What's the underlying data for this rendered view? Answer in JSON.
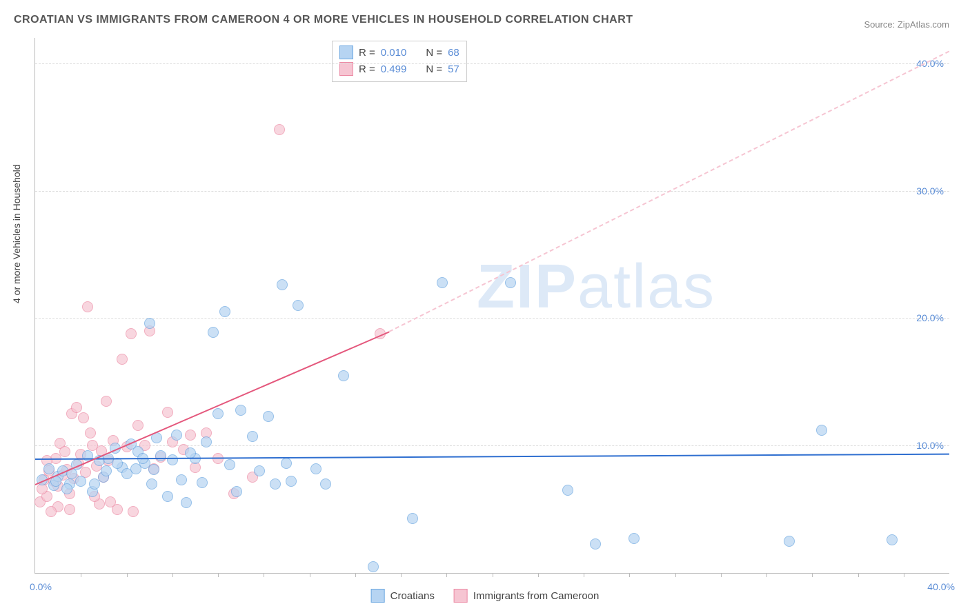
{
  "title": "CROATIAN VS IMMIGRANTS FROM CAMEROON 4 OR MORE VEHICLES IN HOUSEHOLD CORRELATION CHART",
  "source_prefix": "Source: ",
  "source_name": "ZipAtlas.com",
  "y_axis_label": "4 or more Vehicles in Household",
  "watermark_a": "ZIP",
  "watermark_b": "atlas",
  "chart": {
    "type": "scatter",
    "xlim": [
      0,
      40
    ],
    "ylim": [
      0,
      42
    ],
    "x_tick_start": "0.0%",
    "x_tick_end": "40.0%",
    "y_ticks": [
      {
        "v": 10,
        "label": "10.0%"
      },
      {
        "v": 20,
        "label": "20.0%"
      },
      {
        "v": 30,
        "label": "30.0%"
      },
      {
        "v": 40,
        "label": "40.0%"
      }
    ],
    "x_minor_ticks": [
      2,
      4,
      6,
      8,
      10,
      12,
      14,
      16,
      18,
      20,
      22,
      24,
      26,
      28,
      30,
      32,
      34,
      36,
      38
    ],
    "background_color": "#ffffff",
    "grid_color": "#dddddd",
    "series": {
      "croatians": {
        "label": "Croatians",
        "fill": "#b6d4f2",
        "stroke": "#6aa6e0",
        "line_color": "#2f6fd0",
        "R_label": "R = ",
        "R": "0.010",
        "N_label": "N = ",
        "N": "68",
        "regression": {
          "x1": 0,
          "y1": 9.0,
          "x2": 40,
          "y2": 9.4
        },
        "points": [
          [
            0.3,
            7.3
          ],
          [
            0.6,
            8.2
          ],
          [
            0.8,
            6.9
          ],
          [
            1.0,
            7.6
          ],
          [
            1.2,
            8.0
          ],
          [
            1.5,
            7.0
          ],
          [
            1.8,
            8.5
          ],
          [
            2.0,
            7.2
          ],
          [
            2.3,
            9.2
          ],
          [
            2.5,
            6.4
          ],
          [
            2.8,
            8.8
          ],
          [
            3.0,
            7.5
          ],
          [
            3.2,
            9.0
          ],
          [
            3.5,
            9.8
          ],
          [
            3.8,
            8.3
          ],
          [
            4.0,
            7.8
          ],
          [
            4.2,
            10.1
          ],
          [
            4.5,
            9.5
          ],
          [
            4.8,
            8.6
          ],
          [
            5.0,
            19.6
          ],
          [
            5.1,
            7.0
          ],
          [
            5.3,
            10.6
          ],
          [
            5.5,
            9.2
          ],
          [
            5.8,
            6.0
          ],
          [
            6.0,
            8.9
          ],
          [
            6.2,
            10.8
          ],
          [
            6.4,
            7.3
          ],
          [
            6.6,
            5.5
          ],
          [
            7.0,
            9.0
          ],
          [
            7.3,
            7.1
          ],
          [
            7.5,
            10.3
          ],
          [
            7.8,
            18.9
          ],
          [
            8.0,
            12.5
          ],
          [
            8.3,
            20.5
          ],
          [
            8.5,
            8.5
          ],
          [
            8.8,
            6.4
          ],
          [
            9.0,
            12.8
          ],
          [
            9.5,
            10.7
          ],
          [
            9.8,
            8.0
          ],
          [
            10.2,
            12.3
          ],
          [
            10.5,
            7.0
          ],
          [
            10.8,
            22.6
          ],
          [
            11.0,
            8.6
          ],
          [
            11.2,
            7.2
          ],
          [
            11.5,
            21.0
          ],
          [
            12.3,
            8.2
          ],
          [
            12.7,
            7.0
          ],
          [
            13.5,
            15.5
          ],
          [
            14.8,
            0.5
          ],
          [
            16.5,
            4.3
          ],
          [
            17.8,
            22.8
          ],
          [
            20.8,
            22.8
          ],
          [
            23.3,
            6.5
          ],
          [
            24.5,
            2.3
          ],
          [
            26.2,
            2.7
          ],
          [
            33.0,
            2.5
          ],
          [
            34.4,
            11.2
          ],
          [
            37.5,
            2.6
          ],
          [
            5.2,
            8.1
          ],
          [
            6.8,
            9.4
          ],
          [
            3.1,
            8.0
          ],
          [
            1.6,
            7.8
          ],
          [
            4.4,
            8.2
          ],
          [
            2.6,
            7.0
          ],
          [
            0.9,
            7.2
          ],
          [
            1.4,
            6.6
          ],
          [
            3.6,
            8.6
          ],
          [
            4.7,
            9.0
          ]
        ]
      },
      "cameroon": {
        "label": "Immigrants from Cameroon",
        "fill": "#f6c5d2",
        "stroke": "#ec8ba5",
        "line_color": "#e4577c",
        "R_label": "R = ",
        "R": "0.499",
        "N_label": "N = ",
        "N": "57",
        "regression_solid": {
          "x1": 0,
          "y1": 7.0,
          "x2": 15.5,
          "y2": 19.0
        },
        "regression_dashed": {
          "x1": 15.5,
          "y1": 19.0,
          "x2": 40,
          "y2": 41.0
        },
        "points": [
          [
            0.2,
            5.6
          ],
          [
            0.4,
            7.3
          ],
          [
            0.5,
            6.0
          ],
          [
            0.6,
            8.0
          ],
          [
            0.8,
            7.2
          ],
          [
            0.9,
            9.0
          ],
          [
            1.0,
            6.8
          ],
          [
            1.1,
            10.2
          ],
          [
            1.2,
            7.7
          ],
          [
            1.3,
            9.5
          ],
          [
            1.4,
            8.1
          ],
          [
            1.5,
            6.2
          ],
          [
            1.6,
            12.5
          ],
          [
            1.7,
            7.4
          ],
          [
            1.8,
            13.0
          ],
          [
            1.9,
            8.6
          ],
          [
            2.0,
            9.3
          ],
          [
            2.1,
            12.2
          ],
          [
            2.2,
            7.9
          ],
          [
            2.3,
            20.9
          ],
          [
            2.4,
            11.0
          ],
          [
            2.5,
            10.0
          ],
          [
            2.7,
            8.4
          ],
          [
            2.8,
            5.4
          ],
          [
            2.9,
            9.6
          ],
          [
            3.0,
            7.5
          ],
          [
            3.1,
            13.5
          ],
          [
            3.2,
            8.8
          ],
          [
            3.4,
            10.4
          ],
          [
            3.6,
            5.0
          ],
          [
            3.8,
            16.8
          ],
          [
            4.0,
            9.9
          ],
          [
            4.2,
            18.8
          ],
          [
            4.5,
            11.6
          ],
          [
            4.8,
            10.0
          ],
          [
            5.0,
            19.0
          ],
          [
            5.2,
            8.2
          ],
          [
            5.5,
            9.1
          ],
          [
            5.8,
            12.6
          ],
          [
            6.0,
            10.3
          ],
          [
            6.5,
            9.7
          ],
          [
            6.8,
            10.8
          ],
          [
            7.0,
            8.3
          ],
          [
            7.5,
            11.0
          ],
          [
            8.0,
            9.0
          ],
          [
            8.7,
            6.2
          ],
          [
            9.5,
            7.5
          ],
          [
            10.7,
            34.8
          ],
          [
            15.1,
            18.8
          ],
          [
            1.0,
            5.2
          ],
          [
            0.7,
            4.8
          ],
          [
            0.3,
            6.6
          ],
          [
            2.6,
            6.0
          ],
          [
            3.3,
            5.6
          ],
          [
            1.5,
            5.0
          ],
          [
            4.3,
            4.8
          ],
          [
            0.5,
            8.8
          ]
        ]
      }
    }
  }
}
